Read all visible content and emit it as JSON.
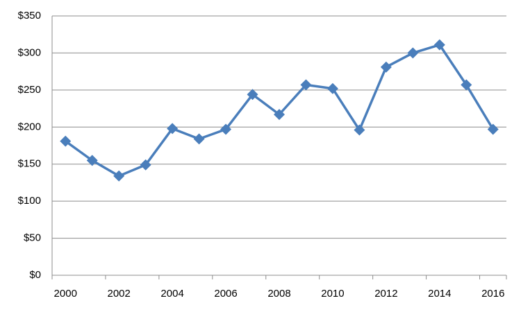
{
  "chart_data": {
    "type": "line",
    "categories": [
      "2000",
      null,
      "2002",
      null,
      "2004",
      null,
      "2006",
      null,
      "2008",
      null,
      "2010",
      null,
      "2012",
      null,
      "2014",
      null,
      "2016"
    ],
    "series": [
      {
        "color": "#4a7ebb",
        "values": [
          181,
          155,
          134,
          149,
          198,
          184,
          197,
          244,
          217,
          257,
          252,
          196,
          281,
          300,
          311,
          257,
          197
        ]
      }
    ],
    "ylim": [
      0,
      350
    ],
    "yticks": [
      {
        "value": 0,
        "label": "$0"
      },
      {
        "value": 50,
        "label": "$50"
      },
      {
        "value": 100,
        "label": "$100"
      },
      {
        "value": 150,
        "label": "$150"
      },
      {
        "value": 200,
        "label": "$200"
      },
      {
        "value": 250,
        "label": "$250"
      },
      {
        "value": 300,
        "label": "$300"
      },
      {
        "value": 350,
        "label": "$350"
      }
    ],
    "grid": true
  }
}
